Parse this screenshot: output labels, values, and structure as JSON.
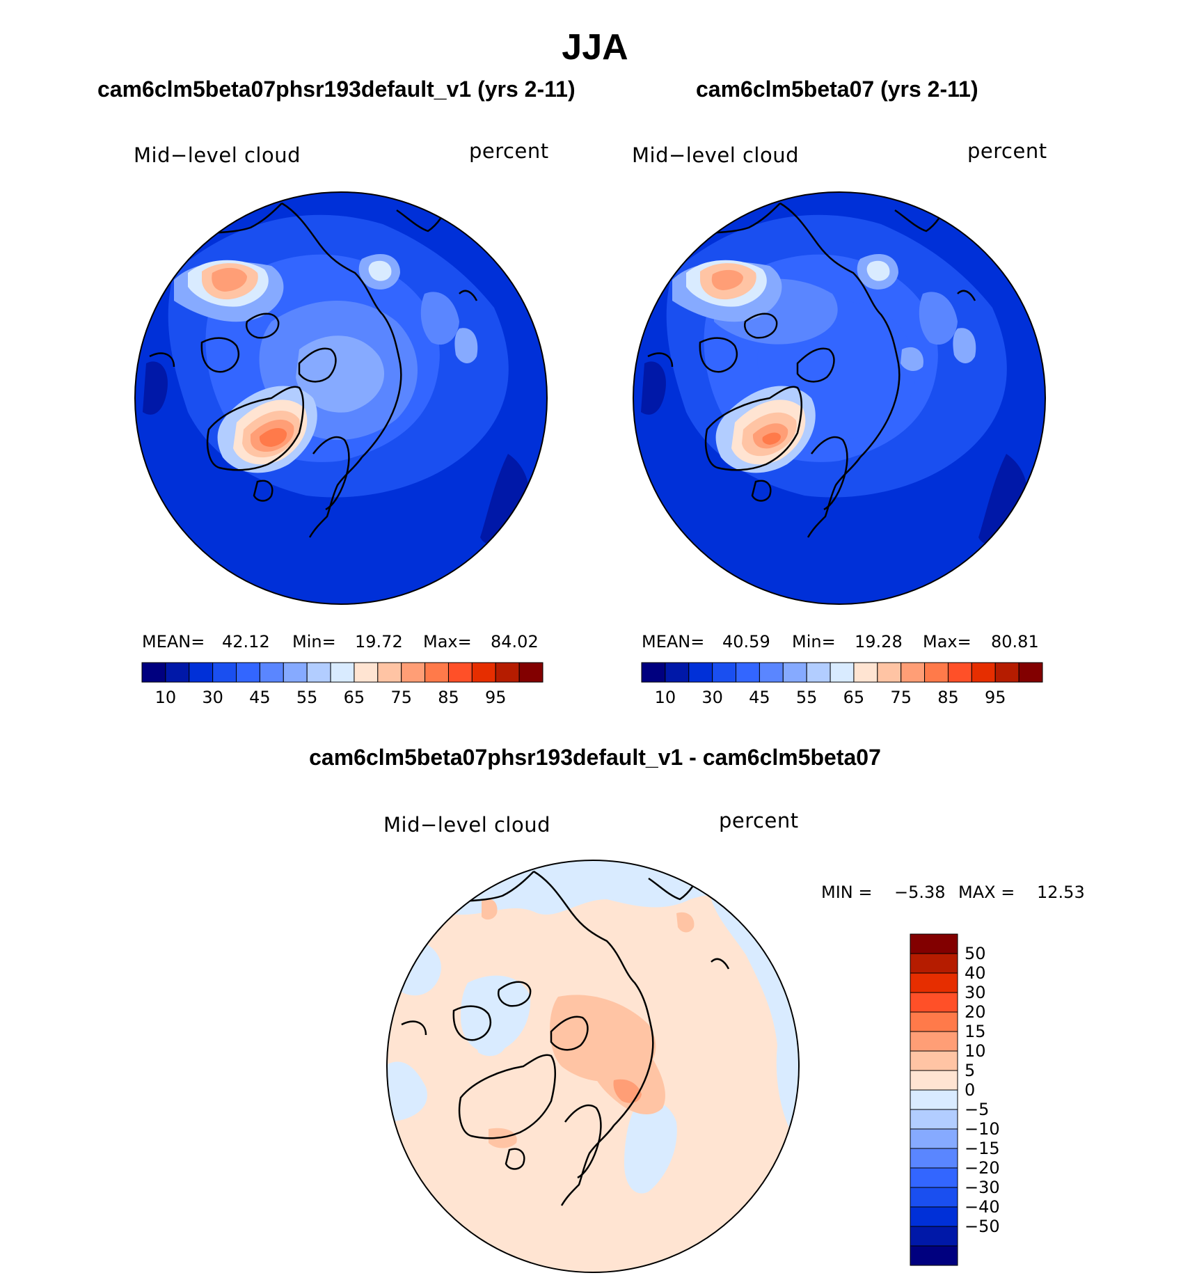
{
  "season": "JJA",
  "panels": [
    {
      "case": "cam6clm5beta07phsr193default_v1 (yrs 2-11)",
      "variable": "Mid−level cloud",
      "units": "percent",
      "stats": {
        "mean_label": "MEAN=",
        "mean": "42.12",
        "min_label": "Min=",
        "min": "19.72",
        "max_label": "Max=",
        "max": "84.02"
      }
    },
    {
      "case": "cam6clm5beta07 (yrs 2-11)",
      "variable": "Mid−level cloud",
      "units": "percent",
      "stats": {
        "mean_label": "MEAN=",
        "mean": "40.59",
        "min_label": "Min=",
        "min": "19.28",
        "max_label": "Max=",
        "max": "80.81"
      }
    }
  ],
  "difference": {
    "title": "cam6clm5beta07phsr193default_v1 - cam6clm5beta07",
    "variable": "Mid−level cloud",
    "units": "percent",
    "min_label": "MIN =",
    "min": "−5.38",
    "max_label": "MAX =",
    "max": "12.53"
  },
  "chart_data": [
    {
      "type": "heatmap",
      "projection": "north-polar-stereographic",
      "title": "cam6clm5beta07phsr193default_v1 (yrs 2-11)",
      "variable": "Mid-level cloud",
      "units": "percent",
      "mean": 42.12,
      "min": 19.72,
      "max": 84.02,
      "colorbar": {
        "orientation": "horizontal",
        "levels": [
          5,
          10,
          20,
          30,
          40,
          45,
          50,
          55,
          60,
          65,
          70,
          75,
          80,
          85,
          90,
          95
        ],
        "tick_labels": [
          "10",
          "30",
          "45",
          "55",
          "65",
          "75",
          "85",
          "95"
        ],
        "colors": [
          "#00007f",
          "#0018a8",
          "#0030d8",
          "#1a4ff0",
          "#3366ff",
          "#5a86ff",
          "#86aaff",
          "#b2cdff",
          "#d9ebff",
          "#ffe4d2",
          "#ffc4a4",
          "#ff9e76",
          "#ff7a4a",
          "#ff5028",
          "#e62e00",
          "#b51c00",
          "#820000"
        ]
      }
    },
    {
      "type": "heatmap",
      "projection": "north-polar-stereographic",
      "title": "cam6clm5beta07 (yrs 2-11)",
      "variable": "Mid-level cloud",
      "units": "percent",
      "mean": 40.59,
      "min": 19.28,
      "max": 80.81,
      "colorbar": {
        "orientation": "horizontal",
        "levels": [
          5,
          10,
          20,
          30,
          40,
          45,
          50,
          55,
          60,
          65,
          70,
          75,
          80,
          85,
          90,
          95
        ],
        "tick_labels": [
          "10",
          "30",
          "45",
          "55",
          "65",
          "75",
          "85",
          "95"
        ],
        "colors": [
          "#00007f",
          "#0018a8",
          "#0030d8",
          "#1a4ff0",
          "#3366ff",
          "#5a86ff",
          "#86aaff",
          "#b2cdff",
          "#d9ebff",
          "#ffe4d2",
          "#ffc4a4",
          "#ff9e76",
          "#ff7a4a",
          "#ff5028",
          "#e62e00",
          "#b51c00",
          "#820000"
        ]
      }
    },
    {
      "type": "heatmap",
      "projection": "north-polar-stereographic",
      "title": "cam6clm5beta07phsr193default_v1 - cam6clm5beta07",
      "variable": "Mid-level cloud",
      "units": "percent",
      "min": -5.38,
      "max": 12.53,
      "colorbar": {
        "orientation": "vertical",
        "levels": [
          -50,
          -40,
          -30,
          -20,
          -15,
          -10,
          -5,
          0,
          5,
          10,
          15,
          20,
          30,
          40,
          50
        ],
        "tick_labels": [
          "50",
          "40",
          "30",
          "20",
          "15",
          "10",
          "5",
          "0",
          "−5",
          "−10",
          "−15",
          "−20",
          "−30",
          "−40",
          "−50"
        ],
        "colors": [
          "#00007f",
          "#0018a8",
          "#0030d8",
          "#1a4ff0",
          "#3366ff",
          "#5a86ff",
          "#86aaff",
          "#b2cdff",
          "#d9ebff",
          "#ffe4d2",
          "#ffc4a4",
          "#ff9e76",
          "#ff7a4a",
          "#ff5028",
          "#e62e00",
          "#b51c00",
          "#820000"
        ]
      }
    }
  ]
}
